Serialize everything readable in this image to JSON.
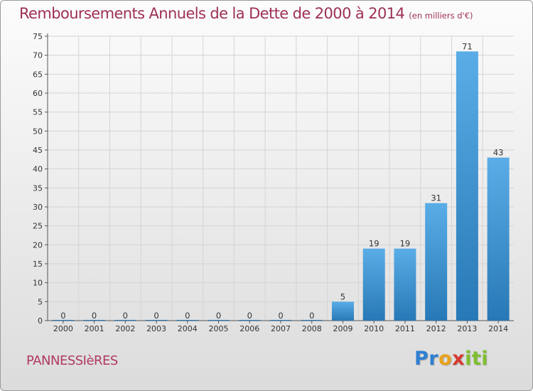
{
  "title": "Remboursements Annuels de la Dette de 2000 à 2014",
  "unit": "(en milliers d'€)",
  "commune": "PANNESSIèRES",
  "logo": {
    "letters": [
      "P",
      "r",
      "o",
      "x",
      "i",
      "t",
      "i"
    ],
    "colors": [
      "#2f7fd1",
      "#2f7fd1",
      "#e9a21c",
      "#d63a30",
      "#7fbf2e",
      "#7fbf2e",
      "#7fbf2e"
    ]
  },
  "colors": {
    "bar_light": "#5aade6",
    "bar_dark": "#2778b6",
    "title": "#9e2f57",
    "grid": "#d4d4d4"
  },
  "chart_data": {
    "type": "bar",
    "title": "Remboursements Annuels de la Dette de 2000 à 2014",
    "categories": [
      "2000",
      "2001",
      "2002",
      "2003",
      "2004",
      "2005",
      "2006",
      "2007",
      "2008",
      "2009",
      "2010",
      "2011",
      "2012",
      "2013",
      "2014"
    ],
    "values": [
      0,
      0,
      0,
      0,
      0,
      0,
      0,
      0,
      0,
      5,
      19,
      19,
      31,
      71,
      43
    ],
    "ylim": [
      0,
      75
    ],
    "yticks": [
      0,
      5,
      10,
      15,
      20,
      25,
      30,
      35,
      40,
      45,
      50,
      55,
      60,
      65,
      70,
      75
    ],
    "grid": true,
    "legend": "none"
  }
}
